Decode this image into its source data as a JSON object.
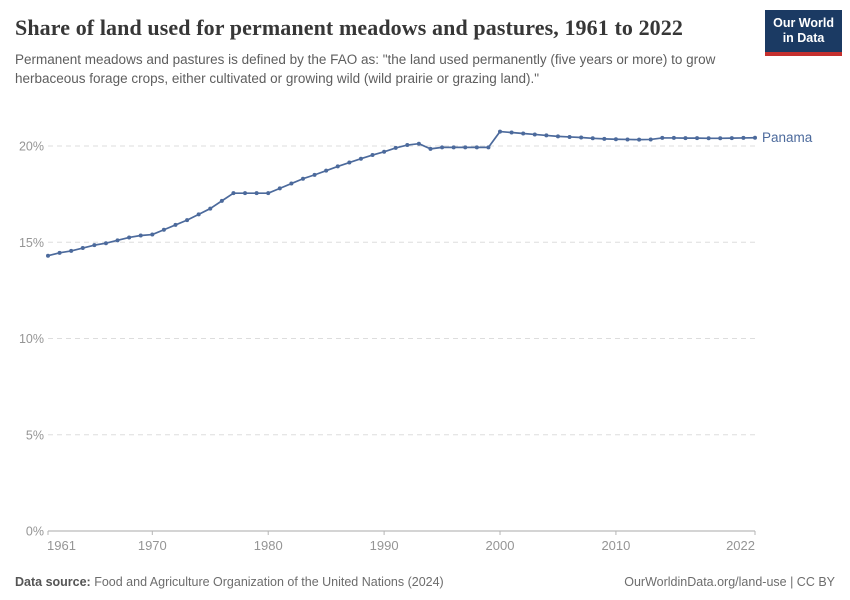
{
  "header": {
    "title": "Share of land used for permanent meadows and pastures, 1961 to 2022",
    "subtitle": "Permanent meadows and pastures is defined by the FAO as: \"the land used permanently (five years or more) to grow herbaceous forage crops, either cultivated or growing wild (wild prairie or grazing land).\"",
    "logo": {
      "line1": "Our World",
      "line2": "in Data",
      "bg_color": "#1b3a63",
      "accent_color": "#c5302e"
    }
  },
  "chart_data": {
    "type": "line",
    "title": "Share of land used for permanent meadows and pastures, 1961 to 2022",
    "xlabel": "",
    "ylabel": "",
    "xlim": [
      1961,
      2022
    ],
    "ylim": [
      0,
      21
    ],
    "grid": "dashed-horizontal",
    "legend_position": "end-of-line-label",
    "x_ticks": [
      1961,
      1970,
      1980,
      1990,
      2000,
      2010,
      2022
    ],
    "y_ticks": [
      0,
      5,
      10,
      15,
      20
    ],
    "y_tick_labels": [
      "0%",
      "5%",
      "10%",
      "15%",
      "20%"
    ],
    "series": [
      {
        "name": "Panama",
        "color": "#4C6A9C",
        "x": [
          1961,
          1962,
          1963,
          1964,
          1965,
          1966,
          1967,
          1968,
          1969,
          1970,
          1971,
          1972,
          1973,
          1974,
          1975,
          1976,
          1977,
          1978,
          1979,
          1980,
          1981,
          1982,
          1983,
          1984,
          1985,
          1986,
          1987,
          1988,
          1989,
          1990,
          1991,
          1992,
          1993,
          1994,
          1995,
          1996,
          1997,
          1998,
          1999,
          2000,
          2001,
          2002,
          2003,
          2004,
          2005,
          2006,
          2007,
          2008,
          2009,
          2010,
          2011,
          2012,
          2013,
          2014,
          2015,
          2016,
          2017,
          2018,
          2019,
          2020,
          2021,
          2022
        ],
        "values": [
          14.3,
          14.45,
          14.55,
          14.7,
          14.85,
          14.95,
          15.1,
          15.25,
          15.35,
          15.4,
          15.65,
          15.9,
          16.15,
          16.45,
          16.75,
          17.15,
          17.55,
          17.55,
          17.55,
          17.55,
          17.8,
          18.05,
          18.3,
          18.5,
          18.72,
          18.94,
          19.14,
          19.34,
          19.53,
          19.7,
          19.9,
          20.05,
          20.12,
          19.85,
          19.93,
          19.93,
          19.93,
          19.93,
          19.93,
          20.75,
          20.7,
          20.65,
          20.6,
          20.55,
          20.5,
          20.47,
          20.44,
          20.4,
          20.37,
          20.35,
          20.34,
          20.33,
          20.34,
          20.42,
          20.42,
          20.41,
          20.41,
          20.4,
          20.4,
          20.41,
          20.42,
          20.43
        ]
      }
    ],
    "style": {
      "gridline_color": "#dddddd",
      "axis_line_color": "#a8a8a8",
      "tick_color": "#b5b5b5",
      "tick_label_color": "#959595"
    }
  },
  "footer": {
    "data_source_label": "Data source:",
    "data_source_value": " Food and Agriculture Organization of the United Nations (2024)",
    "attribution": "OurWorldinData.org/land-use | CC BY"
  }
}
